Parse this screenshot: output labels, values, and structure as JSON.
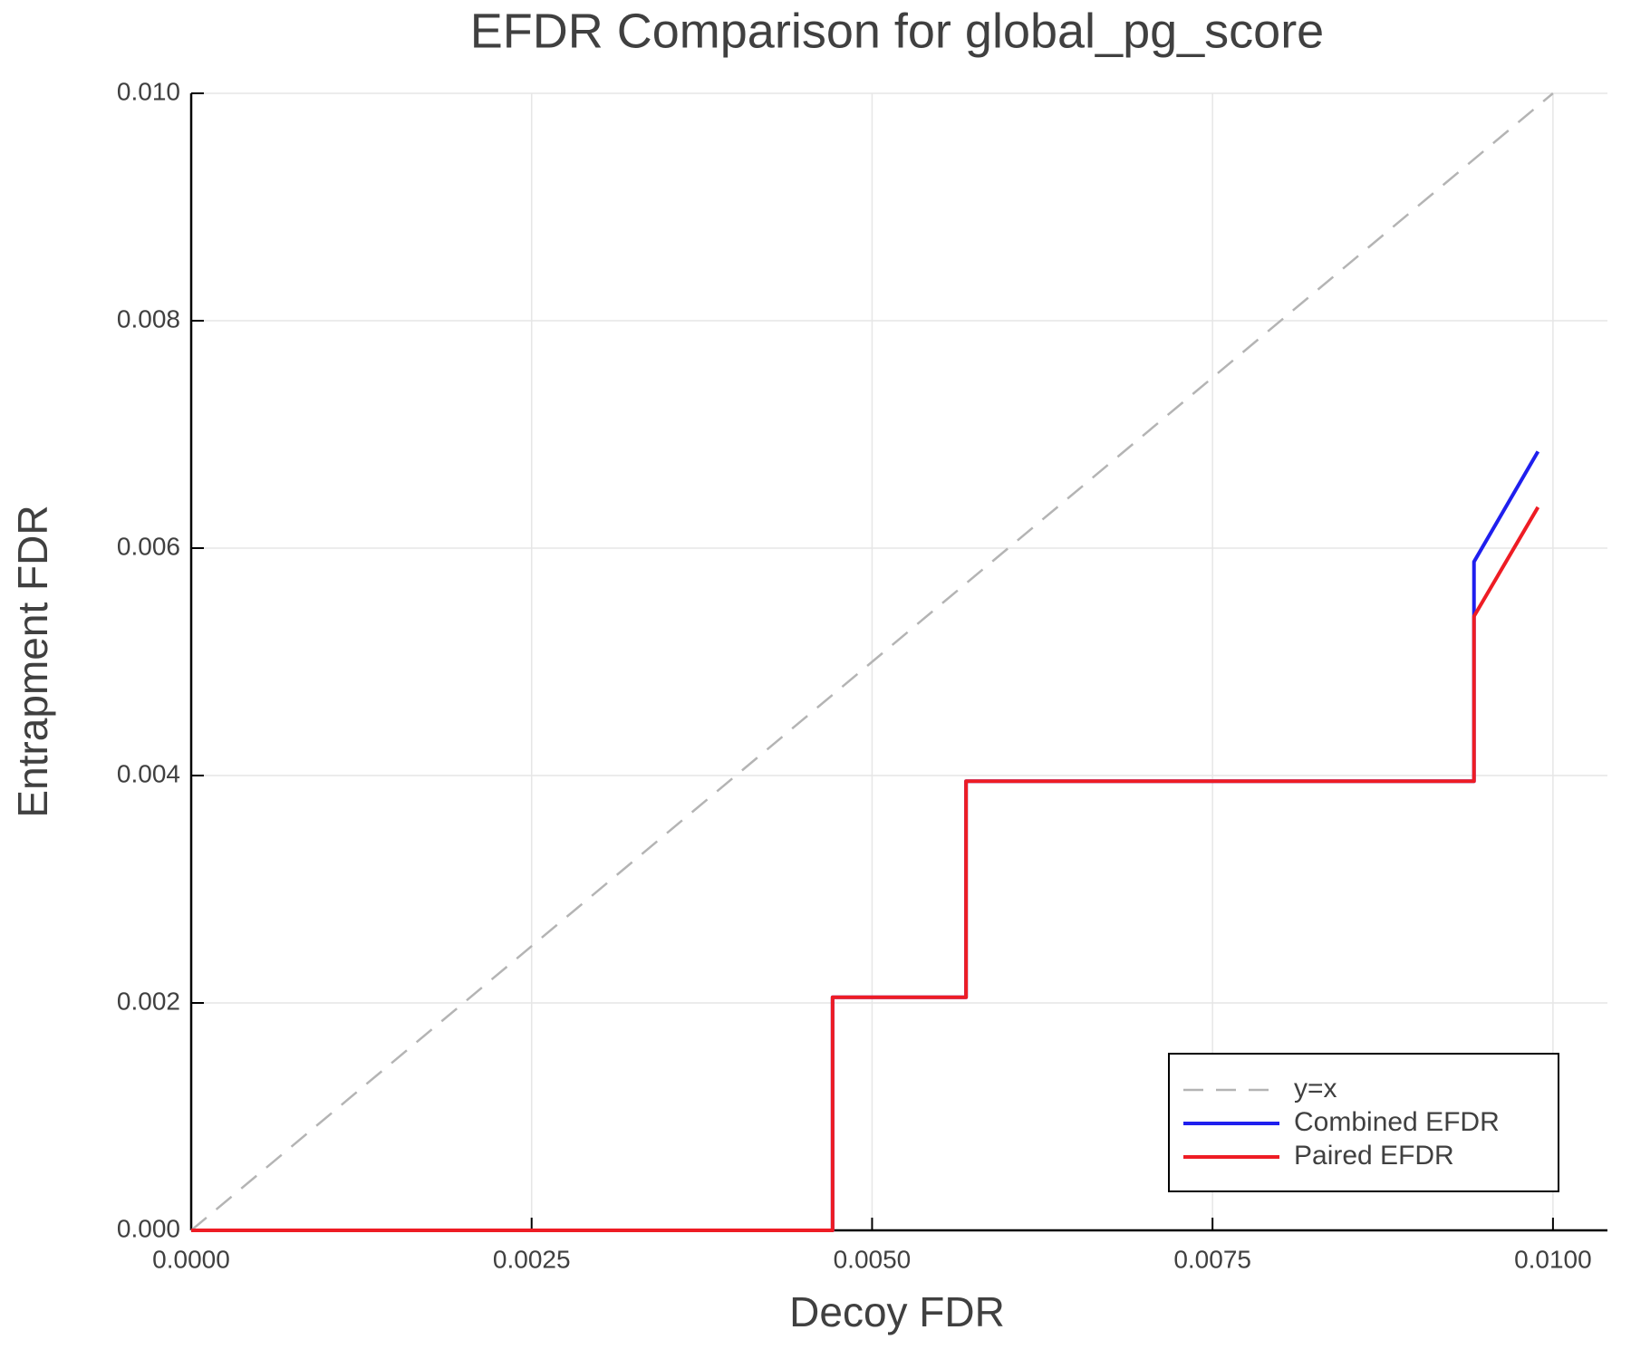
{
  "chart_data": {
    "type": "line",
    "title": "EFDR Comparison for global_pg_score",
    "x_label": "Decoy FDR",
    "y_label": "Entrapment FDR",
    "xlim": [
      0,
      0.0104
    ],
    "ylim": [
      0,
      0.01
    ],
    "xticks": [
      {
        "value": 0,
        "label": "0.0000"
      },
      {
        "value": 0.0025,
        "label": "0.0025"
      },
      {
        "value": 0.005,
        "label": "0.0050"
      },
      {
        "value": 0.0075,
        "label": "0.0075"
      },
      {
        "value": 0.01,
        "label": "0.0100"
      }
    ],
    "yticks": [
      {
        "value": 0,
        "label": "0.000"
      },
      {
        "value": 0.002,
        "label": "0.002"
      },
      {
        "value": 0.004,
        "label": "0.004"
      },
      {
        "value": 0.006,
        "label": "0.006"
      },
      {
        "value": 0.008,
        "label": "0.008"
      },
      {
        "value": 0.01,
        "label": "0.010"
      }
    ],
    "grid": true,
    "legend": "bottom-right",
    "series": [
      {
        "name": "y=x",
        "color": "#b4b4b4",
        "style": "dashed",
        "x": [
          0,
          0.01
        ],
        "values": [
          0,
          0.01
        ]
      },
      {
        "name": "Combined EFDR",
        "color": "#1f1fee",
        "style": "solid",
        "x": [
          0,
          0.00471,
          0.00471,
          0.00569,
          0.00569,
          0.00942,
          0.00942,
          0.00989
        ],
        "values": [
          0,
          0,
          0.00205,
          0.00205,
          0.00395,
          0.00395,
          0.00588,
          0.00685
        ]
      },
      {
        "name": "Paired EFDR",
        "color": "#ee1c24",
        "style": "solid",
        "x": [
          0,
          0.00471,
          0.00471,
          0.00569,
          0.00569,
          0.00942,
          0.00942,
          0.00989
        ],
        "values": [
          0,
          0,
          0.00205,
          0.00205,
          0.00395,
          0.00395,
          0.0054,
          0.00636
        ]
      }
    ]
  }
}
